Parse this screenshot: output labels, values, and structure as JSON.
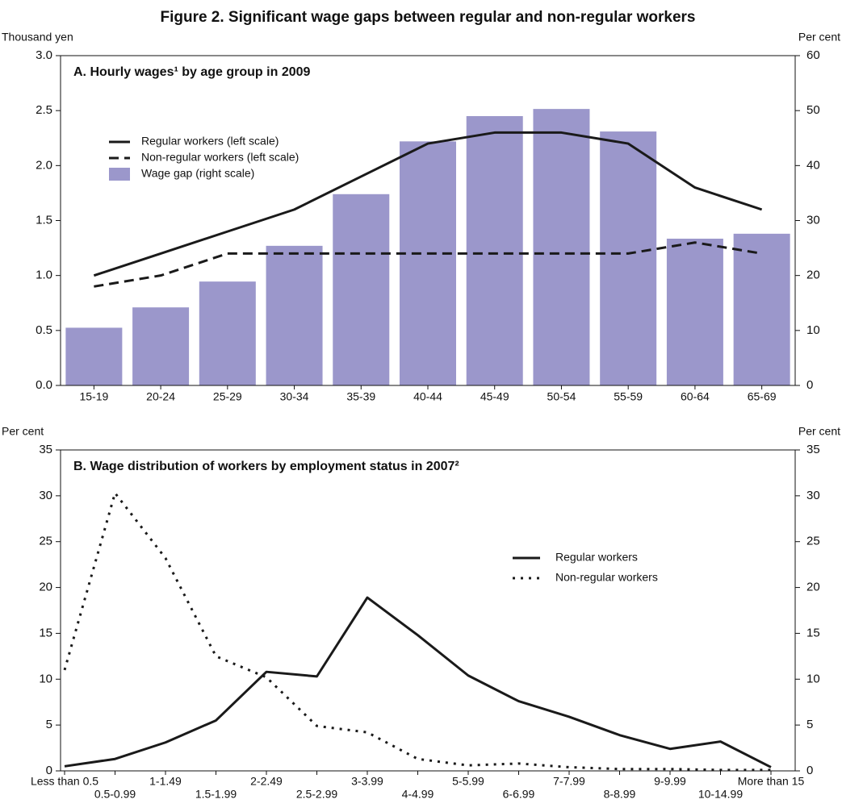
{
  "figure_title": "Figure 2. Significant wage gaps between regular and non-regular workers",
  "chart_data": [
    {
      "type": "combo",
      "title": "A. Hourly wages¹ by age group in 2009",
      "y_label": "Thousand yen",
      "y2_label": "Per cent",
      "categories": [
        "15-19",
        "20-24",
        "25-29",
        "30-34",
        "35-39",
        "40-44",
        "45-49",
        "50-54",
        "55-59",
        "60-64",
        "65-69"
      ],
      "series": [
        {
          "name": "Regular workers (left scale)",
          "type": "line",
          "dash": "solid",
          "color": "#1a1a1a",
          "axis": "y",
          "values": [
            1.0,
            1.2,
            1.4,
            1.6,
            1.9,
            2.2,
            2.3,
            2.3,
            2.2,
            1.8,
            1.6
          ]
        },
        {
          "name": "Non-regular workers (left scale)",
          "type": "line",
          "dash": "dashed",
          "color": "#1a1a1a",
          "axis": "y",
          "values": [
            0.9,
            1.0,
            1.2,
            1.2,
            1.2,
            1.2,
            1.2,
            1.2,
            1.2,
            1.3,
            1.2
          ]
        },
        {
          "name": "Wage gap (right scale)",
          "type": "bar",
          "color": "#9b97cb",
          "axis": "y2",
          "values": [
            10.5,
            14.2,
            18.9,
            25.4,
            34.8,
            44.4,
            49.0,
            50.3,
            46.2,
            26.7,
            27.6
          ]
        }
      ],
      "ylim": [
        0,
        3
      ],
      "yticks": [
        {
          "value": 0,
          "label": "0.0"
        },
        0.5,
        {
          "value": 1,
          "label": "1.0"
        },
        1.5,
        {
          "value": 2,
          "label": "2.0"
        },
        2.5,
        {
          "value": 3,
          "label": "3.0"
        }
      ],
      "y2lim": [
        0,
        60
      ],
      "y2ticks": [
        0,
        10,
        20,
        30,
        40,
        50,
        60
      ],
      "legend": "upper left"
    },
    {
      "type": "line",
      "title": "B. Wage distribution of workers by employment status in 2007²",
      "y_label": "Per cent",
      "y2_label": "Per cent",
      "categories": [
        "Less than 0.5",
        "0.5-0.99",
        "1-1.49",
        "1.5-1.99",
        "2-2.49",
        "2.5-2.99",
        "3-3.99",
        "4-4.99",
        "5-5.99",
        "6-6.99",
        "7-7.99",
        "8-8.99",
        "9-9.99",
        "10-14.99",
        "More than 15"
      ],
      "series": [
        {
          "name": "Regular workers",
          "dash": "solid",
          "color": "#1a1a1a",
          "values": [
            0.5,
            1.3,
            3.1,
            5.5,
            10.8,
            10.3,
            18.9,
            14.8,
            10.4,
            7.6,
            5.9,
            3.9,
            2.4,
            3.2,
            0.4
          ]
        },
        {
          "name": "Non-regular workers",
          "dash": "dotted",
          "color": "#1a1a1a",
          "values": [
            11.0,
            30.3,
            23.2,
            12.5,
            10.2,
            4.9,
            4.2,
            1.3,
            0.6,
            0.8,
            0.4,
            0.2,
            0.2,
            0.1,
            0.1
          ]
        }
      ],
      "ylim": [
        0,
        35
      ],
      "yticks": [
        0,
        5,
        10,
        15,
        20,
        25,
        30,
        35
      ],
      "y2lim": [
        0,
        35
      ],
      "y2ticks": [
        0,
        5,
        10,
        15,
        20,
        25,
        30,
        35
      ],
      "legend": "center right"
    }
  ]
}
